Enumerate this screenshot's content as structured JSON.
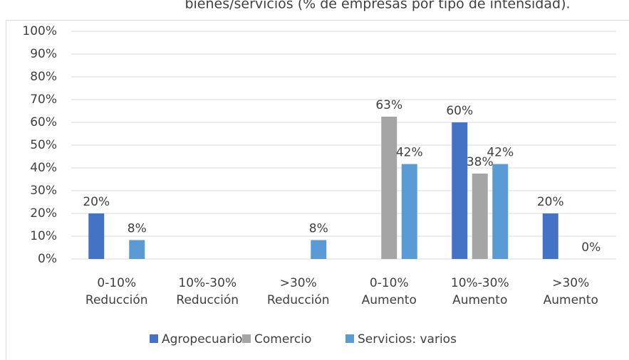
{
  "chart_data": {
    "type": "bar",
    "title": "bienes/servicios (% de empresas por tipo de intensidad).",
    "categories": [
      [
        "0-10%",
        "Reducción"
      ],
      [
        "10%-30%",
        "Reducción"
      ],
      [
        ">30%",
        "Reducción"
      ],
      [
        "0-10%",
        "Aumento"
      ],
      [
        "10%-30%",
        "Aumento"
      ],
      [
        ">30%",
        "Aumento"
      ]
    ],
    "series": [
      {
        "name": "Agropecuario",
        "color": "#4472c4",
        "values": [
          20,
          null,
          null,
          null,
          60,
          20
        ],
        "value_labels": [
          "20%",
          null,
          null,
          null,
          "60%",
          "20%"
        ]
      },
      {
        "name": "Comercio",
        "color": "#a5a5a5",
        "values": [
          null,
          null,
          null,
          62.5,
          37.5,
          null
        ],
        "value_labels": [
          null,
          null,
          null,
          "63%",
          "38%",
          null
        ]
      },
      {
        "name": "Servicios: varios",
        "color": "#5b9bd5",
        "values": [
          8.3,
          null,
          8.3,
          41.7,
          41.7,
          0
        ],
        "value_labels": [
          "8%",
          null,
          "8%",
          "42%",
          "42%",
          "0%"
        ]
      }
    ],
    "ylim": [
      0,
      100
    ],
    "yticks": [
      {
        "value": 0,
        "label": "0%"
      },
      {
        "value": 10,
        "label": "10%"
      },
      {
        "value": 20,
        "label": "20%"
      },
      {
        "value": 30,
        "label": "30%"
      },
      {
        "value": 40,
        "label": "40%"
      },
      {
        "value": 50,
        "label": "50%"
      },
      {
        "value": 60,
        "label": "60%"
      },
      {
        "value": 70,
        "label": "70%"
      },
      {
        "value": 80,
        "label": "80%"
      },
      {
        "value": 90,
        "label": "90%"
      },
      {
        "value": 100,
        "label": "100%"
      }
    ],
    "grid": true,
    "legend": "bottom"
  }
}
